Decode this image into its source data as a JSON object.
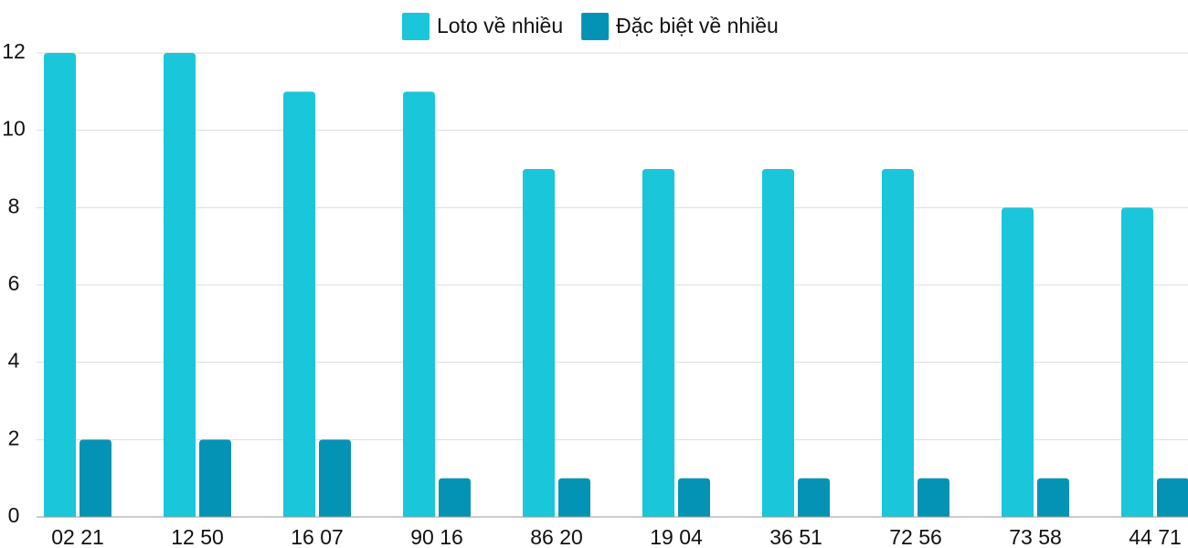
{
  "chart_data": {
    "type": "bar",
    "categories": [
      "02 21",
      "12 50",
      "16 07",
      "90 16",
      "86 20",
      "19 04",
      "36 51",
      "72 56",
      "73 58",
      "44 71"
    ],
    "series": [
      {
        "name": "Loto về nhiều",
        "color": "#1ac6d9",
        "values": [
          12,
          12,
          11,
          11,
          9,
          9,
          9,
          9,
          8,
          8
        ]
      },
      {
        "name": "Đặc biệt về nhiều",
        "color": "#0593b5",
        "values": [
          2,
          2,
          2,
          1,
          1,
          1,
          1,
          1,
          1,
          1
        ]
      }
    ],
    "ylim": [
      0,
      12
    ],
    "yticks": [
      0,
      2,
      4,
      6,
      8,
      10,
      12
    ],
    "grid": true,
    "legend": "top"
  }
}
